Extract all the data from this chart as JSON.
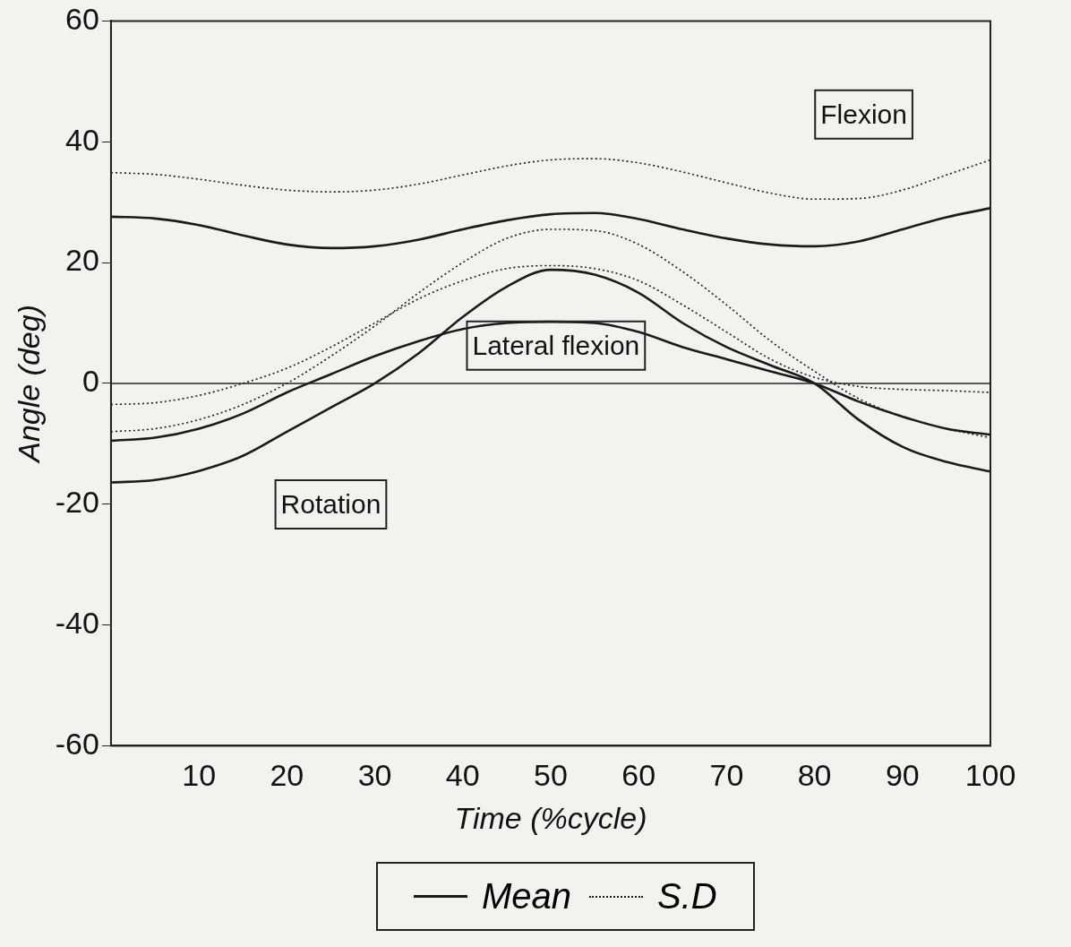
{
  "chart_data": {
    "type": "line",
    "xlabel": "Time (%cycle)",
    "ylabel": "Angle (deg)",
    "x": [
      0,
      5,
      10,
      15,
      20,
      25,
      30,
      35,
      40,
      45,
      50,
      55,
      60,
      65,
      70,
      75,
      80,
      85,
      90,
      95,
      100
    ],
    "series": [
      {
        "name": "Mean",
        "color": "#1a1a1a",
        "line_style": "solid",
        "values": [
          27.6,
          27.3,
          26.2,
          24.5,
          23,
          22.4,
          22.7,
          23.8,
          25.5,
          27,
          28,
          28.2,
          27.2,
          25.5,
          24,
          23,
          22.7,
          23.5,
          25.5,
          27.5,
          29
        ]
      },
      {
        "name": "S.D",
        "color": "#1a1a1a",
        "line_style": "dotted",
        "values": [
          34.9,
          34.6,
          33.8,
          32.8,
          32,
          31.7,
          32,
          33,
          34.5,
          36,
          37,
          37.2,
          36.5,
          35,
          33.2,
          31.5,
          30.5,
          30.6,
          32,
          34.5,
          37
        ]
      },
      {
        "color": "#1a1a1a",
        "line_style": "solid",
        "values": [
          -9.5,
          -9,
          -7.5,
          -5,
          -1.5,
          1.5,
          4.5,
          7,
          9,
          10,
          10.2,
          10,
          8.5,
          6,
          4,
          2,
          0,
          -3,
          -5.5,
          -7.5,
          -8.5
        ]
      },
      {
        "color": "#1a1a1a",
        "line_style": "dotted",
        "values": [
          -3.5,
          -3.2,
          -2,
          0,
          2.5,
          6,
          10,
          14,
          17,
          19,
          19.5,
          19,
          17,
          13,
          8.5,
          4,
          1,
          -0.5,
          -1,
          -1.2,
          -1.5
        ]
      },
      {
        "color": "#1a1a1a",
        "line_style": "solid",
        "values": [
          -16.4,
          -16,
          -14.5,
          -12,
          -8,
          -4,
          0,
          5,
          11,
          16,
          18.8,
          18,
          15,
          10,
          6,
          3,
          0,
          -6,
          -10.5,
          -13,
          -14.6
        ]
      },
      {
        "color": "#1a1a1a",
        "line_style": "dotted",
        "values": [
          -8,
          -7.5,
          -6,
          -3.5,
          0,
          4.5,
          9.5,
          15,
          20,
          24,
          25.5,
          25.3,
          23,
          18.5,
          13,
          7,
          2,
          -2.5,
          -5.5,
          -7.5,
          -9
        ]
      }
    ],
    "xlim": [
      0,
      100
    ],
    "xticks": [
      10,
      20,
      30,
      40,
      50,
      60,
      70,
      80,
      90,
      100
    ],
    "ylim": [
      -60,
      60
    ],
    "yticks": [
      -60,
      -40,
      -20,
      0,
      20,
      40,
      60
    ],
    "ref_lines": [
      {
        "axis": "y",
        "value": 0
      }
    ],
    "annotations": [
      "Flexion",
      "Lateral flexion",
      "Rotation"
    ],
    "legend": "bottom",
    "grid": false,
    "marker": "none"
  }
}
